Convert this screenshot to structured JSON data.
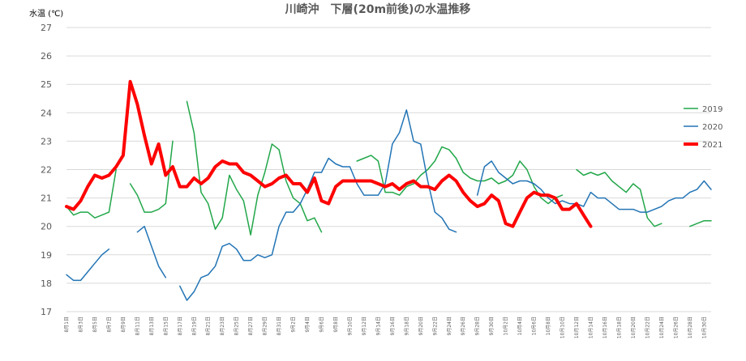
{
  "chart_data": {
    "type": "line",
    "title": "川崎沖　下層(20m前後)の水温推移",
    "ylabel": "水温 (℃)",
    "ylim": [
      17,
      27
    ],
    "yticks": [
      17,
      18,
      19,
      20,
      21,
      22,
      23,
      24,
      25,
      26,
      27
    ],
    "grid": true,
    "legend_position": "right",
    "x": [
      "8月1日",
      "8月2日",
      "8月3日",
      "8月4日",
      "8月5日",
      "8月6日",
      "8月7日",
      "8月8日",
      "8月9日",
      "8月10日",
      "8月11日",
      "8月12日",
      "8月13日",
      "8月14日",
      "8月15日",
      "8月16日",
      "8月17日",
      "8月18日",
      "8月19日",
      "8月20日",
      "8月21日",
      "8月22日",
      "8月23日",
      "8月24日",
      "8月25日",
      "8月26日",
      "8月27日",
      "8月28日",
      "8月29日",
      "8月30日",
      "8月31日",
      "9月1日",
      "9月2日",
      "9月3日",
      "9月4日",
      "9月5日",
      "9月6日",
      "9月7日",
      "9月8日",
      "9月9日",
      "9月10日",
      "9月11日",
      "9月12日",
      "9月13日",
      "9月14日",
      "9月15日",
      "9月16日",
      "9月17日",
      "9月18日",
      "9月19日",
      "9月20日",
      "9月21日",
      "9月22日",
      "9月23日",
      "9月24日",
      "9月25日",
      "9月26日",
      "9月27日",
      "9月28日",
      "9月29日",
      "9月30日",
      "10月1日",
      "10月2日",
      "10月3日",
      "10月4日",
      "10月5日",
      "10月6日",
      "10月7日",
      "10月8日",
      "10月9日",
      "10月10日",
      "10月11日",
      "10月12日",
      "10月13日",
      "10月14日",
      "10月15日",
      "10月16日",
      "10月17日",
      "10月18日",
      "10月19日",
      "10月20日",
      "10月21日",
      "10月22日",
      "10月23日",
      "10月24日",
      "10月25日",
      "10月26日",
      "10月27日",
      "10月28日",
      "10月29日",
      "10月30日",
      "10月31日"
    ],
    "xtick_labels": [
      "8月1日",
      "8月3日",
      "8月5日",
      "8月7日",
      "8月9日",
      "8月11日",
      "8月13日",
      "8月15日",
      "8月17日",
      "8月19日",
      "8月21日",
      "8月23日",
      "8月25日",
      "8月27日",
      "8月29日",
      "8月31日",
      "9月2日",
      "9月4日",
      "9月6日",
      "9月8日",
      "9月10日",
      "9月12日",
      "9月14日",
      "9月16日",
      "9月18日",
      "9月20日",
      "9月22日",
      "9月24日",
      "9月26日",
      "9月28日",
      "9月30日",
      "10月2日",
      "10月4日",
      "10月6日",
      "10月8日",
      "10月10日",
      "10月12日",
      "10月14日",
      "10月16日",
      "10月18日",
      "10月20日",
      "10月22日",
      "10月24日",
      "10月26日",
      "10月28日",
      "10月30日"
    ],
    "series": [
      {
        "name": "2019",
        "color": "#22a74a",
        "width": 1.5,
        "values": [
          20.7,
          20.4,
          20.5,
          20.5,
          20.3,
          20.4,
          20.5,
          22.0,
          null,
          21.5,
          21.1,
          20.5,
          20.5,
          20.6,
          20.8,
          23.0,
          null,
          24.4,
          23.3,
          21.2,
          20.8,
          19.9,
          20.3,
          21.8,
          21.3,
          20.9,
          19.7,
          21.1,
          21.9,
          22.9,
          22.7,
          21.6,
          21.0,
          20.8,
          20.2,
          20.3,
          19.8,
          null,
          null,
          null,
          null,
          22.3,
          22.4,
          22.5,
          22.3,
          21.2,
          21.2,
          21.1,
          21.4,
          21.5,
          21.8,
          22.0,
          22.3,
          22.8,
          22.7,
          22.4,
          21.9,
          21.7,
          21.6,
          21.6,
          21.7,
          21.5,
          21.6,
          21.8,
          22.3,
          22.0,
          21.4,
          21.0,
          20.8,
          21.0,
          21.1,
          null,
          22.0,
          21.8,
          21.9,
          21.8,
          21.9,
          21.6,
          21.4,
          21.2,
          21.5,
          21.3,
          20.3,
          20.0,
          20.1,
          null,
          null,
          null,
          20.0,
          20.1,
          20.2,
          20.2
        ]
      },
      {
        "name": "2020",
        "color": "#2274b5",
        "width": 1.5,
        "values": [
          18.3,
          18.1,
          18.1,
          18.4,
          18.7,
          19.0,
          19.2,
          null,
          null,
          null,
          19.8,
          20.0,
          19.3,
          18.6,
          18.2,
          null,
          17.9,
          17.4,
          17.7,
          18.2,
          18.3,
          18.6,
          19.3,
          19.4,
          19.2,
          18.8,
          18.8,
          19.0,
          18.9,
          19.0,
          20.0,
          20.5,
          20.5,
          20.8,
          21.3,
          21.9,
          21.9,
          22.4,
          22.2,
          22.1,
          22.1,
          21.5,
          21.1,
          21.1,
          21.1,
          21.5,
          22.9,
          23.3,
          24.1,
          23.0,
          22.9,
          21.6,
          20.5,
          20.3,
          19.9,
          19.8,
          null,
          null,
          21.1,
          22.1,
          22.3,
          21.9,
          21.7,
          21.5,
          21.6,
          21.6,
          21.5,
          21.3,
          21.0,
          20.8,
          20.9,
          20.8,
          20.8,
          20.7,
          21.2,
          21.0,
          21.0,
          20.8,
          20.6,
          20.6,
          20.6,
          20.5,
          20.5,
          20.6,
          20.7,
          20.9,
          21.0,
          21.0,
          21.2,
          21.3,
          21.6,
          21.3
        ]
      },
      {
        "name": "2021",
        "color": "#ff0000",
        "width": 4,
        "values": [
          20.7,
          20.6,
          20.9,
          21.4,
          21.8,
          21.7,
          21.8,
          22.1,
          22.5,
          25.1,
          24.3,
          23.2,
          22.2,
          22.9,
          21.8,
          22.1,
          21.4,
          21.4,
          21.7,
          21.5,
          21.7,
          22.1,
          22.3,
          22.2,
          22.2,
          21.9,
          21.8,
          21.6,
          21.4,
          21.5,
          21.7,
          21.8,
          21.5,
          21.5,
          21.2,
          21.7,
          20.9,
          20.8,
          21.4,
          21.6,
          21.6,
          21.6,
          21.6,
          21.6,
          21.5,
          21.4,
          21.5,
          21.3,
          21.5,
          21.6,
          21.4,
          21.4,
          21.3,
          21.6,
          21.8,
          21.6,
          21.2,
          20.9,
          20.7,
          20.8,
          21.1,
          20.9,
          20.1,
          20.0,
          20.5,
          21.0,
          21.2,
          21.1,
          21.1,
          21.0,
          20.6,
          20.6,
          20.8,
          20.4,
          20.0,
          null,
          null,
          null,
          null,
          null,
          null,
          null,
          null,
          null,
          null,
          null,
          null,
          null,
          null,
          null,
          null,
          null
        ]
      }
    ]
  }
}
